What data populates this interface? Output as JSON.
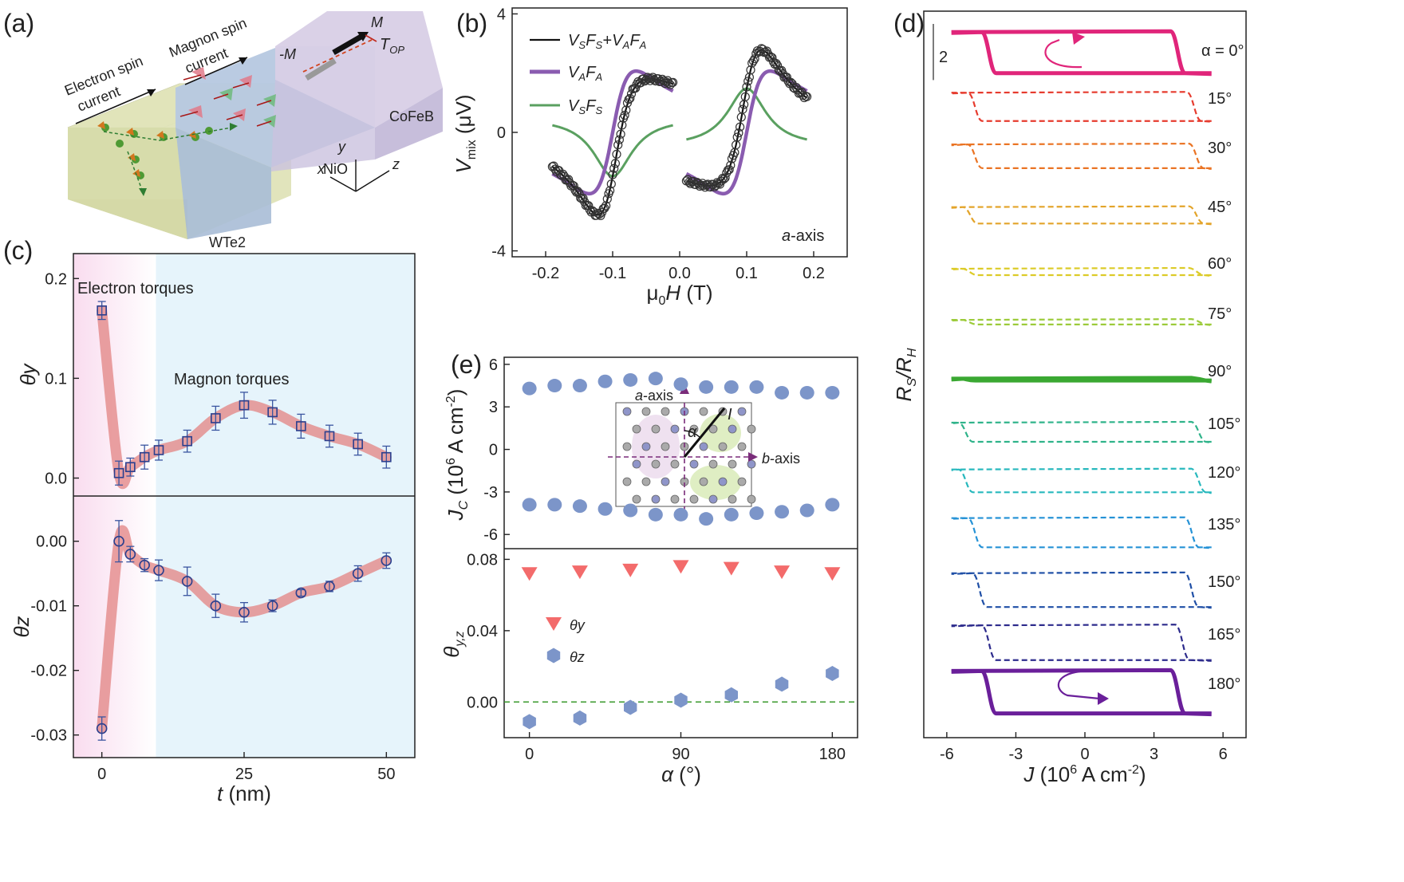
{
  "panel_labels": [
    "(a)",
    "(b)",
    "(c)",
    "(d)",
    "(e)"
  ],
  "schematic": {
    "layers": [
      "WTe2",
      "NiO",
      "CoFeB"
    ],
    "electron_label": [
      "Electron spin",
      "current"
    ],
    "magnon_label": [
      "Magnon spin",
      "current"
    ],
    "m_label": "M",
    "minus_m_label": "-M",
    "torque_label": "T",
    "torque_sub": "OP",
    "axes": [
      "x",
      "y",
      "z"
    ],
    "colors": {
      "wte2": "#dfe3b8",
      "nio": "#b6c8e0",
      "cofeb": "#d8cfe6"
    }
  },
  "chart_data": [
    {
      "id": "b",
      "type": "line",
      "xlabel_parts": [
        "μ",
        "0",
        "H",
        " (T)"
      ],
      "ylabel_parts": [
        "V",
        "mix",
        " (μV)"
      ],
      "xlim": [
        -0.25,
        0.25
      ],
      "ylim": [
        -4.2,
        4.2
      ],
      "xticks": [
        "-0.2",
        "-0.1",
        "0.0",
        "0.1",
        "0.2"
      ],
      "xtick_values": [
        -0.2,
        -0.1,
        0.0,
        0.1,
        0.2
      ],
      "yticks": [
        "4",
        "0",
        "-4"
      ],
      "ytick_values": [
        4,
        0,
        -4
      ],
      "annotation": "a-axis",
      "series": [
        {
          "name": "VSFS+VAFA",
          "color": "#111111"
        },
        {
          "name": "VAFA",
          "color": "#8a5cb0"
        },
        {
          "name": "VSFS",
          "color": "#5aa060"
        }
      ],
      "model": {
        "H0": 0.1,
        "dH": 0.035,
        "A": 5.1,
        "S": 1.98,
        "S_offset": 0.05,
        "ranges": [
          [
            -0.19,
            -0.01
          ],
          [
            0.01,
            0.19
          ]
        ]
      }
    },
    {
      "id": "c_top",
      "type": "line",
      "ylabel": "θy",
      "xlim": [
        -5,
        55
      ],
      "ylim": [
        -0.018,
        0.225
      ],
      "yticks": [
        "0.2",
        "0.1",
        "0.0"
      ],
      "ytick_values": [
        0.2,
        0.1,
        0.0
      ],
      "annotations": [
        "Electron torques",
        "Magnon torques"
      ],
      "x": [
        0,
        3,
        5,
        7.5,
        10,
        15,
        20,
        25,
        30,
        35,
        40,
        45,
        50
      ],
      "y": [
        0.168,
        0.005,
        0.011,
        0.021,
        0.028,
        0.037,
        0.06,
        0.073,
        0.066,
        0.052,
        0.042,
        0.034,
        0.021
      ],
      "err": [
        0.009,
        0.012,
        0.009,
        0.012,
        0.01,
        0.011,
        0.012,
        0.013,
        0.012,
        0.012,
        0.011,
        0.011,
        0.011
      ]
    },
    {
      "id": "c_bottom",
      "type": "line",
      "ylabel": "θz",
      "xlabel_parts": [
        "t",
        " (nm)"
      ],
      "xlim": [
        -5,
        55
      ],
      "ylim": [
        -0.0335,
        0.007
      ],
      "xticks": [
        "0",
        "25",
        "50"
      ],
      "xtick_values": [
        0,
        25,
        50
      ],
      "yticks": [
        "0.00",
        "-0.01",
        "-0.02",
        "-0.03"
      ],
      "ytick_values": [
        0.0,
        -0.01,
        -0.02,
        -0.03
      ],
      "x": [
        0,
        3,
        5,
        7.5,
        10,
        15,
        20,
        25,
        30,
        35,
        40,
        45,
        50
      ],
      "y": [
        -0.029,
        0.0,
        -0.002,
        -0.0037,
        -0.0045,
        -0.0062,
        -0.01,
        -0.011,
        -0.01,
        -0.008,
        -0.007,
        -0.005,
        -0.003
      ],
      "err": [
        0.0018,
        0.0032,
        0.0012,
        0.001,
        0.0016,
        0.0022,
        0.0018,
        0.0015,
        0.0009,
        0.0005,
        0.0008,
        0.0012,
        0.0012
      ]
    },
    {
      "id": "e_top",
      "type": "scatter",
      "ylabel_parts": [
        "J",
        "C",
        " (10",
        "6",
        " A cm",
        "-2",
        ")"
      ],
      "xlim": [
        -15,
        195
      ],
      "ylim": [
        -7.0,
        6.5
      ],
      "yticks": [
        "6",
        "3",
        "0",
        "-3",
        "-6"
      ],
      "ytick_values": [
        6,
        3,
        0,
        -3,
        -6
      ],
      "alpha": [
        0,
        15,
        30,
        45,
        60,
        75,
        90,
        105,
        120,
        135,
        150,
        165,
        180
      ],
      "jc_pos": [
        4.3,
        4.5,
        4.5,
        4.8,
        4.9,
        5.0,
        4.6,
        4.4,
        4.4,
        4.4,
        4.0,
        4.0,
        4.0
      ],
      "jc_neg": [
        -3.9,
        -3.9,
        -4.0,
        -4.2,
        -4.3,
        -4.6,
        -4.6,
        -4.9,
        -4.6,
        -4.5,
        -4.4,
        -4.3,
        -3.9
      ],
      "inset": {
        "a_axis": "a-axis",
        "b_axis": "b-axis",
        "alpha": "α",
        "current": "I"
      },
      "color": "#7c95c9"
    },
    {
      "id": "e_bottom",
      "type": "scatter",
      "ylabel_parts": [
        "θ",
        "y,z"
      ],
      "xlabel_parts": [
        "α",
        " (°)"
      ],
      "xlim": [
        -15,
        195
      ],
      "ylim": [
        -0.02,
        0.086
      ],
      "xticks": [
        "0",
        "90",
        "180"
      ],
      "xtick_values": [
        0,
        90,
        180
      ],
      "yticks": [
        "0.08",
        "0.04",
        "0.00"
      ],
      "ytick_values": [
        0.08,
        0.04,
        0.0
      ],
      "x": [
        0,
        30,
        60,
        90,
        120,
        150,
        180
      ],
      "series": [
        {
          "name": "θy",
          "marker": "triangle",
          "color": "#f36b6b",
          "values": [
            0.072,
            0.073,
            0.074,
            0.076,
            0.075,
            0.073,
            0.072
          ]
        },
        {
          "name": "θz",
          "marker": "hexagon",
          "color": "#7c95c9",
          "values": [
            -0.011,
            -0.009,
            -0.003,
            0.001,
            0.004,
            0.01,
            0.016
          ]
        }
      ]
    },
    {
      "id": "d",
      "type": "line",
      "ylabel_parts": [
        "R",
        "S",
        "/R",
        "H"
      ],
      "xlabel_parts": [
        "J",
        " (10",
        "6",
        " A cm",
        "-2",
        ")"
      ],
      "xlim": [
        -7,
        7
      ],
      "xticks": [
        "-6",
        "-3",
        "0",
        "3",
        "6"
      ],
      "xtick_values": [
        -6,
        -3,
        0,
        3,
        6
      ],
      "scale_bar": "2",
      "curves": [
        {
          "label": "α = 0°",
          "color": "#e0257a",
          "height": 1.8,
          "switch_neg": -4.2,
          "switch_pos": 4.0,
          "solid": true,
          "arrow": "ccw"
        },
        {
          "label": "15°",
          "color": "#e63b2e",
          "height": 0.62,
          "switch_neg": -4.8,
          "switch_pos": 4.7,
          "solid": false
        },
        {
          "label": "30°",
          "color": "#ea7424",
          "height": 0.52,
          "switch_neg": -4.8,
          "switch_pos": 4.8,
          "solid": false
        },
        {
          "label": "45°",
          "color": "#e3a42a",
          "height": 0.36,
          "switch_neg": -5.0,
          "switch_pos": 4.8,
          "solid": false
        },
        {
          "label": "60°",
          "color": "#dccb28",
          "height": 0.14,
          "switch_neg": -5.0,
          "switch_pos": 4.8,
          "solid": false
        },
        {
          "label": "75°",
          "color": "#9ccb3a",
          "height": 0.1,
          "switch_neg": -5.0,
          "switch_pos": 4.9,
          "solid": false
        },
        {
          "label": "90°",
          "color": "#3aa832",
          "height": 0.04,
          "switch_neg": -5.0,
          "switch_pos": 4.9,
          "solid": true
        },
        {
          "label": "105°",
          "color": "#2fb38a",
          "height": 0.42,
          "switch_neg": -5.2,
          "switch_pos": 4.9,
          "solid": false
        },
        {
          "label": "120°",
          "color": "#27b8bd",
          "height": 0.5,
          "switch_neg": -5.2,
          "switch_pos": 4.9,
          "solid": false
        },
        {
          "label": "135°",
          "color": "#2592d6",
          "height": 0.64,
          "switch_neg": -4.8,
          "switch_pos": 4.6,
          "solid": false
        },
        {
          "label": "150°",
          "color": "#1f4fa6",
          "height": 0.74,
          "switch_neg": -4.6,
          "switch_pos": 4.6,
          "solid": false
        },
        {
          "label": "165°",
          "color": "#2d2b8c",
          "height": 0.76,
          "switch_neg": -4.2,
          "switch_pos": 4.2,
          "solid": false
        },
        {
          "label": "180°",
          "color": "#6a1f9a",
          "height": 1.86,
          "switch_neg": -4.2,
          "switch_pos": 4.0,
          "solid": true,
          "arrow": "cw"
        }
      ]
    }
  ]
}
